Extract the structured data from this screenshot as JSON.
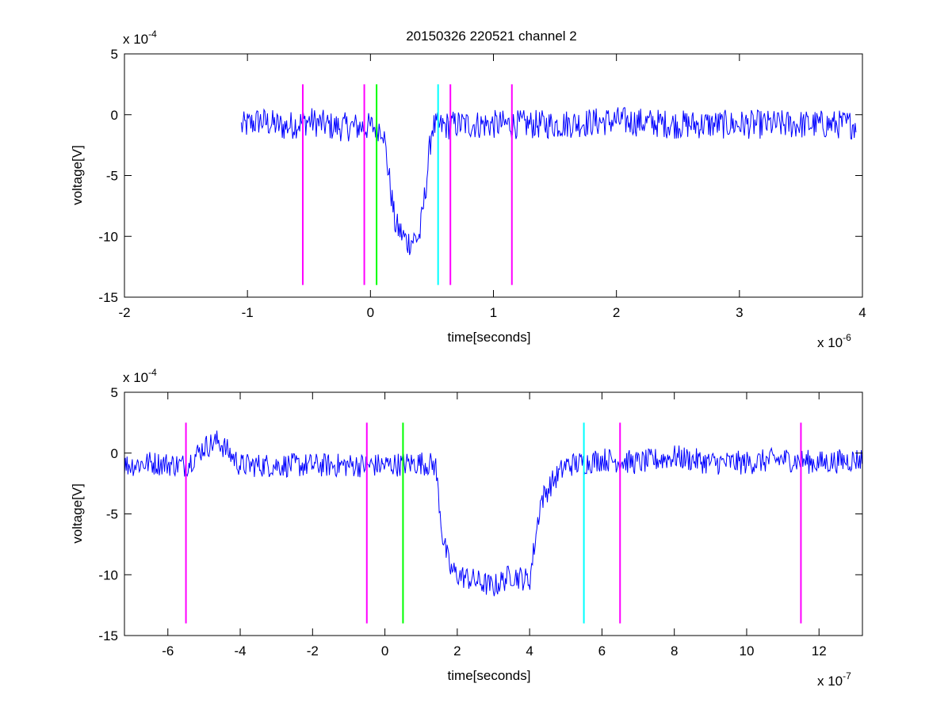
{
  "figure": {
    "title": "20150326 220521 channel 2"
  },
  "colors": {
    "signal": "#0000ff",
    "magenta": "#ff00ff",
    "green": "#00ff00",
    "cyan": "#00ffff",
    "axes": "#000000"
  },
  "chart_data": [
    {
      "type": "line",
      "title": "20150326 220521 channel 2",
      "xlabel": "time[seconds]",
      "ylabel": "voltage[V]",
      "x_multiplier_base": "x 10",
      "x_multiplier_exp": "-6",
      "y_multiplier_base": "x 10",
      "y_multiplier_exp": "-4",
      "xlim": [
        -2,
        4
      ],
      "ylim": [
        -15,
        5
      ],
      "xticks": [
        -2,
        -1,
        0,
        1,
        2,
        3,
        4
      ],
      "yticks": [
        5,
        0,
        -5,
        -10,
        -15
      ],
      "grid": false,
      "series": [
        {
          "color": "signal",
          "x": [
            -1.05,
            -0.9,
            -0.7,
            -0.5,
            -0.3,
            -0.1,
            0.1,
            0.15,
            0.2,
            0.3,
            0.4,
            0.45,
            0.5,
            0.55,
            0.7,
            1.0,
            1.5,
            2.0,
            2.5,
            3.0,
            3.5,
            3.95
          ],
          "y": [
            -1,
            -0.5,
            -1,
            -0.5,
            -1,
            -1,
            -1,
            -5,
            -9,
            -10.5,
            -10,
            -6,
            -1,
            -1,
            -0.8,
            -0.8,
            -0.8,
            -0.5,
            -0.8,
            -0.8,
            -0.8,
            -0.8
          ],
          "noise_amplitude": 1.2
        }
      ],
      "markers": [
        {
          "x": -0.55,
          "color": "magenta"
        },
        {
          "x": -0.05,
          "color": "magenta"
        },
        {
          "x": 0.05,
          "color": "green"
        },
        {
          "x": 0.55,
          "color": "cyan"
        },
        {
          "x": 0.65,
          "color": "magenta"
        },
        {
          "x": 1.15,
          "color": "magenta"
        }
      ],
      "marker_yrange": [
        -14,
        2.5
      ]
    },
    {
      "type": "line",
      "title": "",
      "xlabel": "time[seconds]",
      "ylabel": "voltage[V]",
      "x_multiplier_base": "x 10",
      "x_multiplier_exp": "-7",
      "y_multiplier_base": "x 10",
      "y_multiplier_exp": "-4",
      "xlim": [
        -7.2,
        13.2
      ],
      "ylim": [
        -15,
        5
      ],
      "xticks": [
        -6,
        -4,
        -2,
        0,
        2,
        4,
        6,
        8,
        10,
        12
      ],
      "yticks": [
        5,
        0,
        -5,
        -10,
        -15
      ],
      "grid": false,
      "series": [
        {
          "color": "signal",
          "x": [
            -7.2,
            -6.5,
            -5.5,
            -5.0,
            -4.6,
            -4.0,
            -3.0,
            -2.0,
            -1.0,
            0.0,
            1.0,
            1.4,
            1.6,
            1.8,
            2.0,
            2.5,
            3.0,
            3.5,
            4.0,
            4.3,
            4.6,
            5.0,
            5.5,
            6.0,
            7.0,
            8.0,
            9.0,
            10.0,
            11.0,
            12.0,
            13.2
          ],
          "y": [
            -1,
            -0.8,
            -1,
            0.5,
            1,
            -1,
            -1,
            -1,
            -1,
            -1,
            -0.8,
            -1,
            -7,
            -9.5,
            -10,
            -10.5,
            -11,
            -10,
            -10.5,
            -4,
            -2.5,
            -1,
            -0.8,
            -0.5,
            -0.8,
            -0.3,
            -0.8,
            -0.8,
            -0.5,
            -0.8,
            -0.5
          ],
          "noise_amplitude": 1.0
        }
      ],
      "markers": [
        {
          "x": -5.5,
          "color": "magenta"
        },
        {
          "x": -0.5,
          "color": "magenta"
        },
        {
          "x": 0.5,
          "color": "green"
        },
        {
          "x": 5.5,
          "color": "cyan"
        },
        {
          "x": 6.5,
          "color": "magenta"
        },
        {
          "x": 11.5,
          "color": "magenta"
        }
      ],
      "marker_yrange": [
        -14,
        2.5
      ]
    }
  ]
}
